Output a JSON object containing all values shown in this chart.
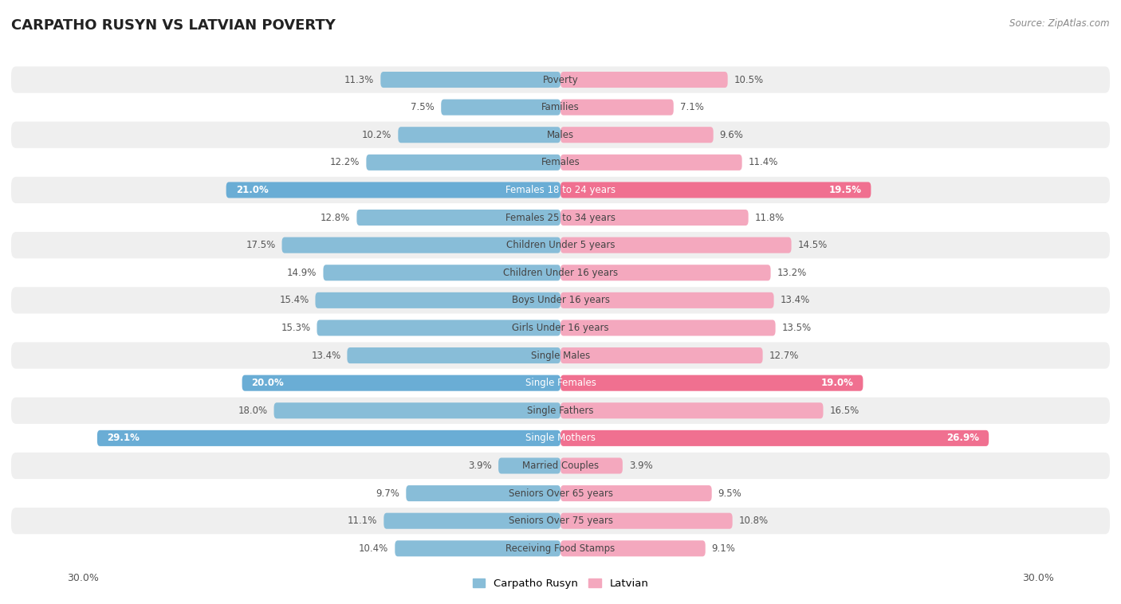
{
  "title": "CARPATHO RUSYN VS LATVIAN POVERTY",
  "source": "Source: ZipAtlas.com",
  "categories": [
    "Poverty",
    "Families",
    "Males",
    "Females",
    "Females 18 to 24 years",
    "Females 25 to 34 years",
    "Children Under 5 years",
    "Children Under 16 years",
    "Boys Under 16 years",
    "Girls Under 16 years",
    "Single Males",
    "Single Females",
    "Single Fathers",
    "Single Mothers",
    "Married Couples",
    "Seniors Over 65 years",
    "Seniors Over 75 years",
    "Receiving Food Stamps"
  ],
  "left_values": [
    11.3,
    7.5,
    10.2,
    12.2,
    21.0,
    12.8,
    17.5,
    14.9,
    15.4,
    15.3,
    13.4,
    20.0,
    18.0,
    29.1,
    3.9,
    9.7,
    11.1,
    10.4
  ],
  "right_values": [
    10.5,
    7.1,
    9.6,
    11.4,
    19.5,
    11.8,
    14.5,
    13.2,
    13.4,
    13.5,
    12.7,
    19.0,
    16.5,
    26.9,
    3.9,
    9.5,
    10.8,
    9.1
  ],
  "left_color": "#88bdd8",
  "right_color": "#f4a8be",
  "highlight_left_color": "#6aadd5",
  "highlight_right_color": "#f07090",
  "highlight_rows": [
    4,
    11,
    13
  ],
  "left_label": "Carpatho Rusyn",
  "right_label": "Latvian",
  "xlim": 30.0,
  "bar_height": 0.58,
  "bg_color_odd": "#efefef",
  "bg_color_even": "#ffffff",
  "title_fontsize": 13,
  "label_fontsize": 8.5,
  "value_fontsize": 8.5,
  "axis_label_fontsize": 9
}
